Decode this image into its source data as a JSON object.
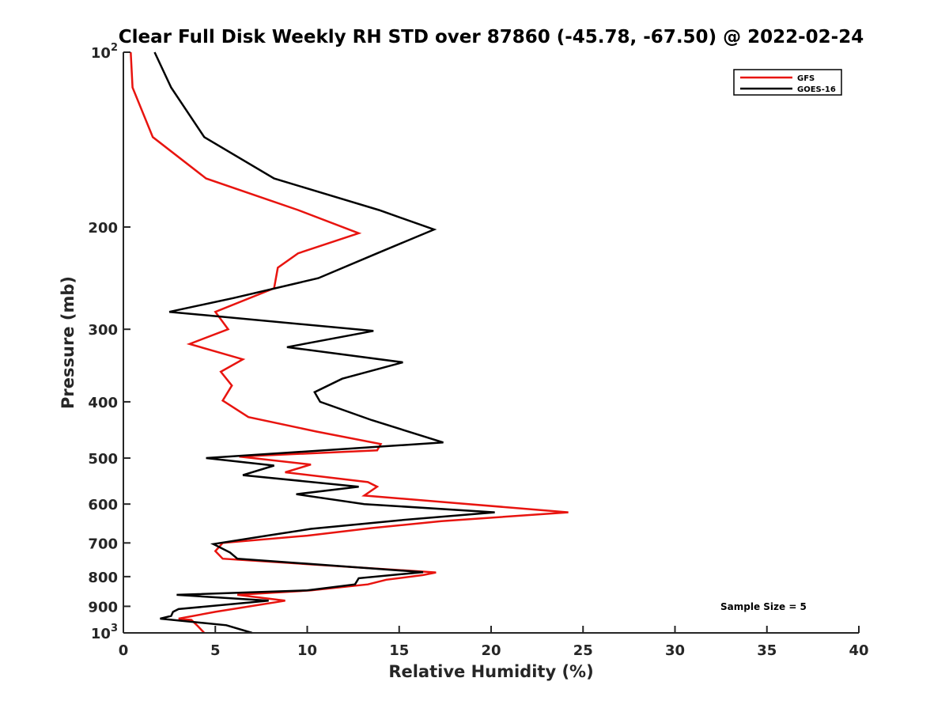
{
  "chart_data": {
    "type": "line",
    "title": "Clear Full Disk Weekly RH STD over 87860 (-45.78, -67.50) @ 2022-02-24",
    "xlabel": "Relative Humidity (%)",
    "ylabel": "Pressure (mb)",
    "xlim": [
      0,
      40
    ],
    "ylim": [
      100,
      1000
    ],
    "y_scale": "log",
    "y_reversed": true,
    "grid": false,
    "legend_position": "top-right",
    "x_ticks": [
      0,
      5,
      10,
      15,
      20,
      25,
      30,
      35,
      40
    ],
    "x_tick_labels": [
      "0",
      "5",
      "10",
      "15",
      "20",
      "25",
      "30",
      "35",
      "40"
    ],
    "y_ticks": [
      {
        "value": 100,
        "base": "10",
        "exp": "2"
      },
      {
        "value": 200,
        "base": "200",
        "exp": ""
      },
      {
        "value": 300,
        "base": "300",
        "exp": ""
      },
      {
        "value": 400,
        "base": "400",
        "exp": ""
      },
      {
        "value": 500,
        "base": "500",
        "exp": ""
      },
      {
        "value": 600,
        "base": "600",
        "exp": ""
      },
      {
        "value": 700,
        "base": "700",
        "exp": ""
      },
      {
        "value": 800,
        "base": "800",
        "exp": ""
      },
      {
        "value": 900,
        "base": "900",
        "exp": ""
      },
      {
        "value": 1000,
        "base": "10",
        "exp": "3"
      }
    ],
    "annotation": "Sample Size = 5",
    "series": [
      {
        "name": "GFS",
        "color": "#e8140f",
        "points": [
          [
            0.4,
            100
          ],
          [
            0.5,
            115
          ],
          [
            1.6,
            140
          ],
          [
            4.5,
            165
          ],
          [
            9.5,
            187
          ],
          [
            12.8,
            205
          ],
          [
            9.5,
            222
          ],
          [
            8.4,
            235
          ],
          [
            8.2,
            255
          ],
          [
            5.0,
            280
          ],
          [
            5.7,
            300
          ],
          [
            3.6,
            318
          ],
          [
            6.5,
            338
          ],
          [
            5.3,
            355
          ],
          [
            5.9,
            375
          ],
          [
            5.4,
            398
          ],
          [
            6.8,
            425
          ],
          [
            10.5,
            450
          ],
          [
            14.0,
            473
          ],
          [
            13.8,
            485
          ],
          [
            6.3,
            497
          ],
          [
            10.2,
            513
          ],
          [
            8.8,
            529
          ],
          [
            13.3,
            550
          ],
          [
            13.8,
            560
          ],
          [
            13.1,
            580
          ],
          [
            24.2,
            620
          ],
          [
            17.3,
            642
          ],
          [
            13.5,
            660
          ],
          [
            10.0,
            680
          ],
          [
            5.4,
            700
          ],
          [
            5.0,
            723
          ],
          [
            5.4,
            745
          ],
          [
            17.0,
            787
          ],
          [
            16.3,
            795
          ],
          [
            14.3,
            810
          ],
          [
            13.3,
            825
          ],
          [
            10.2,
            845
          ],
          [
            6.2,
            860
          ],
          [
            8.8,
            880
          ],
          [
            5.0,
            920
          ],
          [
            3.0,
            945
          ],
          [
            3.7,
            950
          ],
          [
            4.0,
            970
          ],
          [
            4.4,
            1000
          ]
        ]
      },
      {
        "name": "GOES-16",
        "color": "#000000",
        "points": [
          [
            1.7,
            100
          ],
          [
            2.6,
            115
          ],
          [
            4.4,
            140
          ],
          [
            8.2,
            165
          ],
          [
            13.9,
            187
          ],
          [
            16.9,
            202
          ],
          [
            13.8,
            222
          ],
          [
            10.6,
            245
          ],
          [
            6.0,
            265
          ],
          [
            2.5,
            280
          ],
          [
            13.6,
            302
          ],
          [
            8.9,
            322
          ],
          [
            15.2,
            342
          ],
          [
            11.9,
            365
          ],
          [
            10.4,
            385
          ],
          [
            10.7,
            400
          ],
          [
            13.5,
            430
          ],
          [
            17.4,
            470
          ],
          [
            4.5,
            500
          ],
          [
            8.2,
            515
          ],
          [
            6.5,
            535
          ],
          [
            12.8,
            560
          ],
          [
            9.4,
            577
          ],
          [
            13.1,
            600
          ],
          [
            20.2,
            620
          ],
          [
            15.0,
            640
          ],
          [
            10.2,
            662
          ],
          [
            7.8,
            680
          ],
          [
            4.9,
            703
          ],
          [
            5.8,
            727
          ],
          [
            6.2,
            745
          ],
          [
            16.3,
            786
          ],
          [
            12.8,
            805
          ],
          [
            12.6,
            825
          ],
          [
            10.0,
            845
          ],
          [
            2.9,
            860
          ],
          [
            7.9,
            880
          ],
          [
            3.0,
            910
          ],
          [
            2.7,
            920
          ],
          [
            2.6,
            935
          ],
          [
            2.0,
            945
          ],
          [
            5.6,
            970
          ],
          [
            7.0,
            1000
          ]
        ]
      }
    ]
  }
}
